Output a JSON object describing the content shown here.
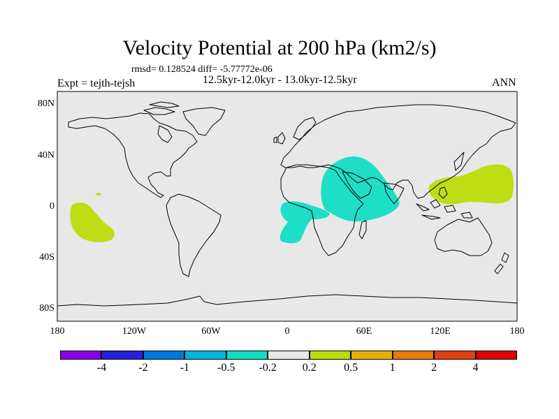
{
  "title": "Velocity Potential at 200 hPa (km2/s)",
  "stats": "rmsd= 0.128524 diff= -5.77772e-06",
  "subtitle": "12.5kyr-12.0kyr - 13.0kyr-12.5kyr",
  "experiment": "Expt = tejth-tejsh",
  "season": "ANN",
  "lat_labels": [
    "80N",
    "40N",
    "0",
    "40S",
    "80S"
  ],
  "lon_labels": [
    "180",
    "120W",
    "60W",
    "0",
    "60E",
    "120E",
    "180"
  ],
  "colorbar": {
    "labels": [
      "-4",
      "-2",
      "-1",
      "-0.5",
      "-0.2",
      "0.2",
      "0.5",
      "1",
      "2",
      "4"
    ],
    "colors": [
      "#8a00e6",
      "#2222dd",
      "#0077dd",
      "#00b4e0",
      "#11dcc4",
      "#e8e8e8",
      "#b7dc08",
      "#e6b000",
      "#e67c00",
      "#e04010",
      "#e00000"
    ]
  },
  "map_colors": {
    "ocean": "#e8e8e8",
    "positive": "#bedd14",
    "negative": "#1fdec7"
  },
  "anomalies": [
    {
      "name": "western-pacific-positive",
      "level": "0.2"
    },
    {
      "name": "east-pacific-positive",
      "level": "0.2"
    },
    {
      "name": "africa-arabia-negative",
      "level": "-0.2"
    },
    {
      "name": "equatorial-atlantic-negative",
      "level": "-0.2"
    }
  ]
}
